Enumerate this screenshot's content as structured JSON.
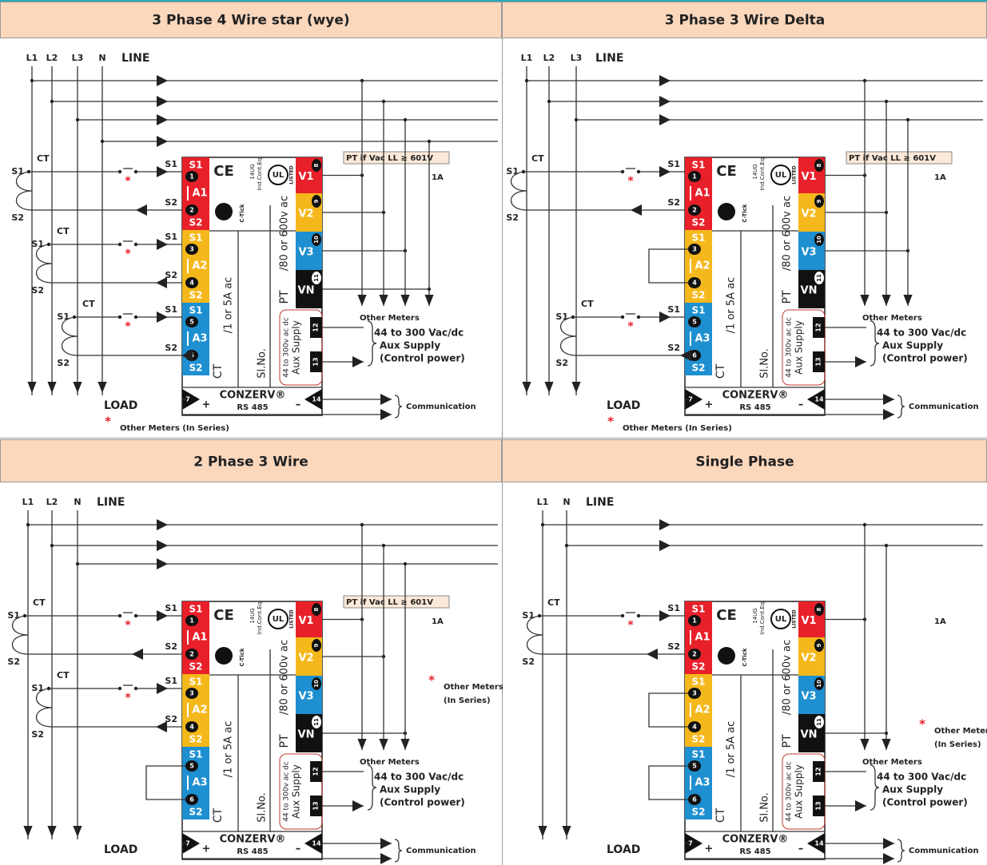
{
  "meter": {
    "current_groups": [
      {
        "s1": "S1",
        "n1": "1",
        "phase": "A1",
        "n2": "2",
        "s2": "S2"
      },
      {
        "s1": "S1",
        "n1": "3",
        "phase": "A2",
        "n2": "4",
        "s2": "S2"
      },
      {
        "s1": "S1",
        "n1": "5",
        "phase": "A3",
        "n2": "6",
        "s2": "S2"
      }
    ],
    "voltage_inputs": [
      {
        "label": "V1",
        "n": "8"
      },
      {
        "label": "V2",
        "n": "9"
      },
      {
        "label": "V3",
        "n": "10"
      },
      {
        "label": "VN",
        "n": "11"
      }
    ],
    "ce": "CE",
    "approval": [
      "14UG",
      "Ind.Cont.Eq."
    ],
    "ctick": "C-Tick",
    "ul": "UL",
    "listed": "LISTED",
    "ct_text": "CT",
    "ct_rating": "/1 or 5A ac",
    "pt_text": "PT",
    "pt_rating": "/80 or 600v ac",
    "aux_rating": "44 to 300v ac dc",
    "aux_text": "Aux Supply",
    "serial": "Sl.No.",
    "aux_terminals": [
      "12",
      "13"
    ],
    "brand": "CONZERV®",
    "comm_terminals": [
      "7",
      "14"
    ],
    "plus": "+",
    "minus": "–",
    "rs485": "RS 485"
  },
  "panels": [
    {
      "title": "3 Phase 4 Wire star (wye)",
      "lines": [
        "L1",
        "L2",
        "L3",
        "N"
      ],
      "line_text": "LINE",
      "load_text": "LOAD",
      "cts": [
        {
          "ct": "CT",
          "s1": "S1",
          "s2": "S2"
        },
        {
          "ct": "CT",
          "s1": "S1",
          "s2": "S2"
        },
        {
          "ct": "CT",
          "s1": "S1",
          "s2": "S2"
        }
      ],
      "wire_s1": "S1",
      "wire_s2": "S2",
      "pt_note": "PT if Vac LL ≥ 601V",
      "pt_amp": "1A",
      "other_meters": "Other Meters",
      "aux_supply": [
        "44 to 300 Vac/dc",
        "Aux Supply",
        "(Control power)"
      ],
      "communication": "Communication",
      "series_mark": "*",
      "series_note": [
        "Other Meters (In Series)"
      ]
    },
    {
      "title": "3 Phase 3 Wire Delta",
      "lines": [
        "L1",
        "L2",
        "L3"
      ],
      "line_text": "LINE",
      "load_text": "LOAD",
      "cts": [
        {
          "ct": "CT",
          "s1": "S1",
          "s2": "S2"
        },
        {
          "ct": "CT",
          "s1": "S1",
          "s2": "S2"
        }
      ],
      "wire_s1": "S1",
      "wire_s2": "S2",
      "pt_note": "PT if Vac LL ≥ 601V",
      "pt_amp": "1A",
      "other_meters": "Other Meters",
      "aux_supply": [
        "44 to 300 Vac/dc",
        "Aux Supply",
        "(Control power)"
      ],
      "communication": "Communication",
      "series_mark": "*",
      "series_note": [
        "Other Meters (In Series)"
      ]
    },
    {
      "title": "2 Phase 3 Wire",
      "lines": [
        "L1",
        "L2",
        "N"
      ],
      "line_text": "LINE",
      "load_text": "LOAD",
      "cts": [
        {
          "ct": "CT",
          "s1": "S1",
          "s2": "S2"
        },
        {
          "ct": "CT",
          "s1": "S1",
          "s2": "S2"
        }
      ],
      "wire_s1": "S1",
      "wire_s2": "S2",
      "pt_note": "PT if Vac LL ≥ 601V",
      "pt_amp": "1A",
      "other_meters": "Other Meters",
      "aux_supply": [
        "44 to 300 Vac/dc",
        "Aux Supply",
        "(Control power)"
      ],
      "communication": "Communication",
      "series_mark": "*",
      "series_note": [
        "Other Meters",
        "(In Series)"
      ]
    },
    {
      "title": "Single Phase",
      "lines": [
        "L1",
        "N"
      ],
      "line_text": "LINE",
      "load_text": "LOAD",
      "cts": [
        {
          "ct": "CT",
          "s1": "S1",
          "s2": "S2"
        }
      ],
      "wire_s1": "S1",
      "wire_s2": "S2",
      "pt_amp": "1A",
      "other_meters": "Other Meters",
      "aux_supply": [
        "44 to 300 Vac/dc",
        "Aux Supply",
        "(Control power)"
      ],
      "communication": "Communication",
      "series_mark": "*",
      "series_note": [
        "Other Meters",
        "(In Series)"
      ]
    }
  ]
}
